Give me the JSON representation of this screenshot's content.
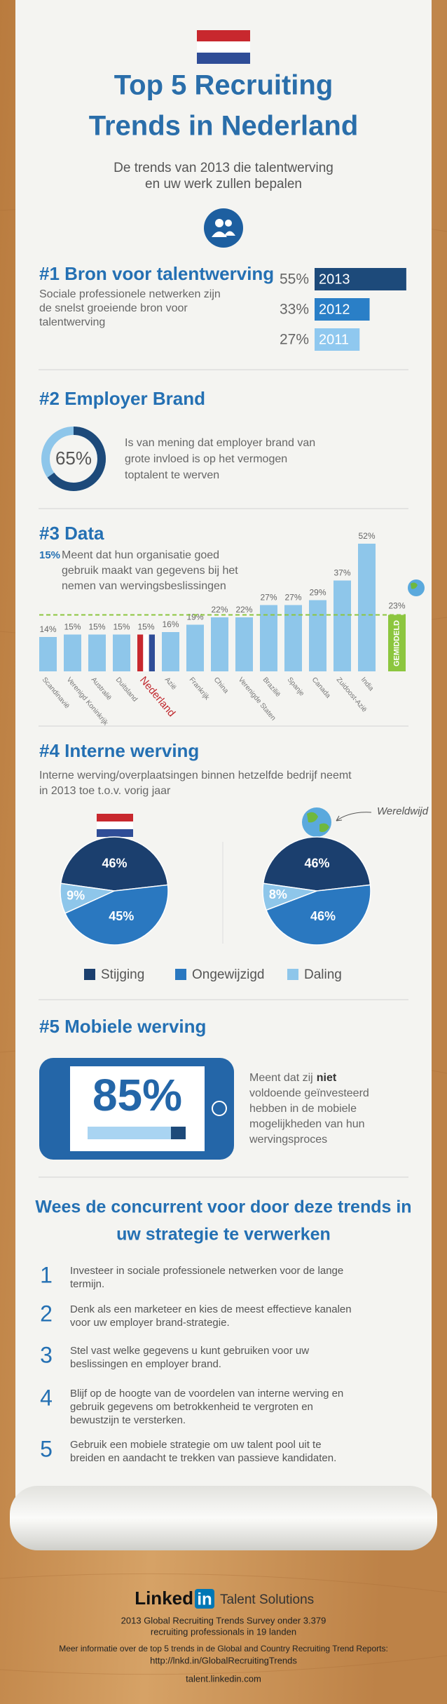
{
  "header": {
    "title_lines": [
      "Top 5 Recruiting",
      "Trends in Nederland"
    ],
    "subtitle_lines": [
      "De trends van 2013 die talentwerving",
      "en uw werk zullen bepalen"
    ]
  },
  "trend1": {
    "heading": "#1 Bron voor talentwerving",
    "text_lines": [
      "Sociale professionele netwerken zijn",
      "de snelst groeiende bron voor",
      "talentwerving"
    ],
    "categories": [
      "2013",
      "2012",
      "2011"
    ],
    "values": [
      55,
      33,
      27
    ],
    "value_labels": [
      "55%",
      "33%",
      "27%"
    ],
    "colors": [
      "#1d4a7a",
      "#2a7fc7",
      "#8fc8ef"
    ]
  },
  "trend2": {
    "heading": "#2 Employer Brand",
    "value": 65,
    "value_label": "65%",
    "text_lines": [
      "Is van mening dat employer brand van",
      "grote invloed is op het vermogen",
      "toptalent te werven"
    ]
  },
  "trend3": {
    "heading": "#3 Data",
    "highlight": "15%",
    "text_lines": [
      "Meent dat hun organisatie goed",
      "gebruik maakt van gegevens bij het",
      "nemen van wervingsbeslissingen"
    ],
    "chart": {
      "type": "bar",
      "categories": [
        "Scandinavië",
        "Verenigd Koninkrijk",
        "Australië",
        "Duitsland",
        "Nederland",
        "Azië",
        "Frankrijk",
        "China",
        "Verenigde Staten",
        "Brazilië",
        "Spanje",
        "Canada",
        "Zuidoost-Azië",
        "India"
      ],
      "values": [
        14,
        15,
        15,
        15,
        15,
        16,
        19,
        22,
        22,
        27,
        27,
        29,
        37,
        52
      ],
      "value_labels": [
        "14%",
        "15%",
        "15%",
        "15%",
        "15%",
        "16%",
        "19%",
        "22%",
        "22%",
        "27%",
        "27%",
        "29%",
        "37%",
        "52%"
      ],
      "color": "#8ec6ea",
      "highlight_index": 4,
      "highlight_color": "#c0282e",
      "average": 23,
      "average_label": "23%",
      "average_name": "GEMIDDELD",
      "average_color": "#8cc63f"
    }
  },
  "trend4": {
    "heading": "#4 Interne werving",
    "text_lines": [
      "Interne werving/overplaatsingen binnen hetzelfde bedrijf neemt",
      "in 2013 toe t.o.v. vorig jaar"
    ],
    "legend": [
      "Stijging",
      "Ongewijzigd",
      "Daling"
    ],
    "colors": [
      "#1b3f6e",
      "#2a78c0",
      "#8ec6ea"
    ],
    "pies": [
      {
        "type": "pie",
        "values": [
          46,
          45,
          9
        ],
        "value_labels": [
          "46%",
          "45%",
          "9%"
        ]
      },
      {
        "type": "pie",
        "label": "Wereldwijd",
        "values": [
          46,
          46,
          8
        ],
        "value_labels": [
          "46%",
          "46%",
          "8%"
        ]
      }
    ]
  },
  "trend5": {
    "heading": "#5 Mobiele werving",
    "value": 85,
    "value_label": "85%",
    "text_parts": [
      "Meent dat zij",
      "niet",
      "voldoende geïnvesteerd",
      "hebben in de mobiele",
      "mogelijkheden van hun",
      "wervingsproces"
    ]
  },
  "conclusion": {
    "heading_lines": [
      "Wees de concurrent voor door deze trends in",
      "uw strategie te verwerken"
    ],
    "items": [
      {
        "number": "1",
        "text_lines": [
          "Investeer in sociale professionele netwerken voor de lange",
          "termijn."
        ]
      },
      {
        "number": "2",
        "text_lines": [
          "Denk als een marketeer en kies de meest effectieve kanalen",
          "voor uw employer brand-strategie."
        ]
      },
      {
        "number": "3",
        "text_lines": [
          "Stel vast welke gegevens u kunt gebruiken voor uw",
          "beslissingen en employer brand."
        ]
      },
      {
        "number": "4",
        "text_lines": [
          "Blijf op de hoogte van de voordelen van interne werving en",
          "gebruik gegevens om betrokkenheid te vergroten en",
          "bewustzijn te versterken."
        ]
      },
      {
        "number": "5",
        "text_lines": [
          "Gebruik een mobiele strategie om uw talent pool uit te",
          "breiden en aandacht te trekken van passieve kandidaten."
        ]
      }
    ]
  },
  "footer": {
    "logo_linked": "Linked",
    "logo_in": "in",
    "product": "Talent Solutions",
    "lines": [
      "2013 Global Recruiting Trends Survey onder 3.379",
      "recruiting professionals in 19 landen",
      "Meer informatie over de top 5 trends in de Global and Country Recruiting Trend Reports:",
      "http://lnkd.in/GlobalRecruitingTrends"
    ],
    "url": "talent.linkedin.com"
  }
}
